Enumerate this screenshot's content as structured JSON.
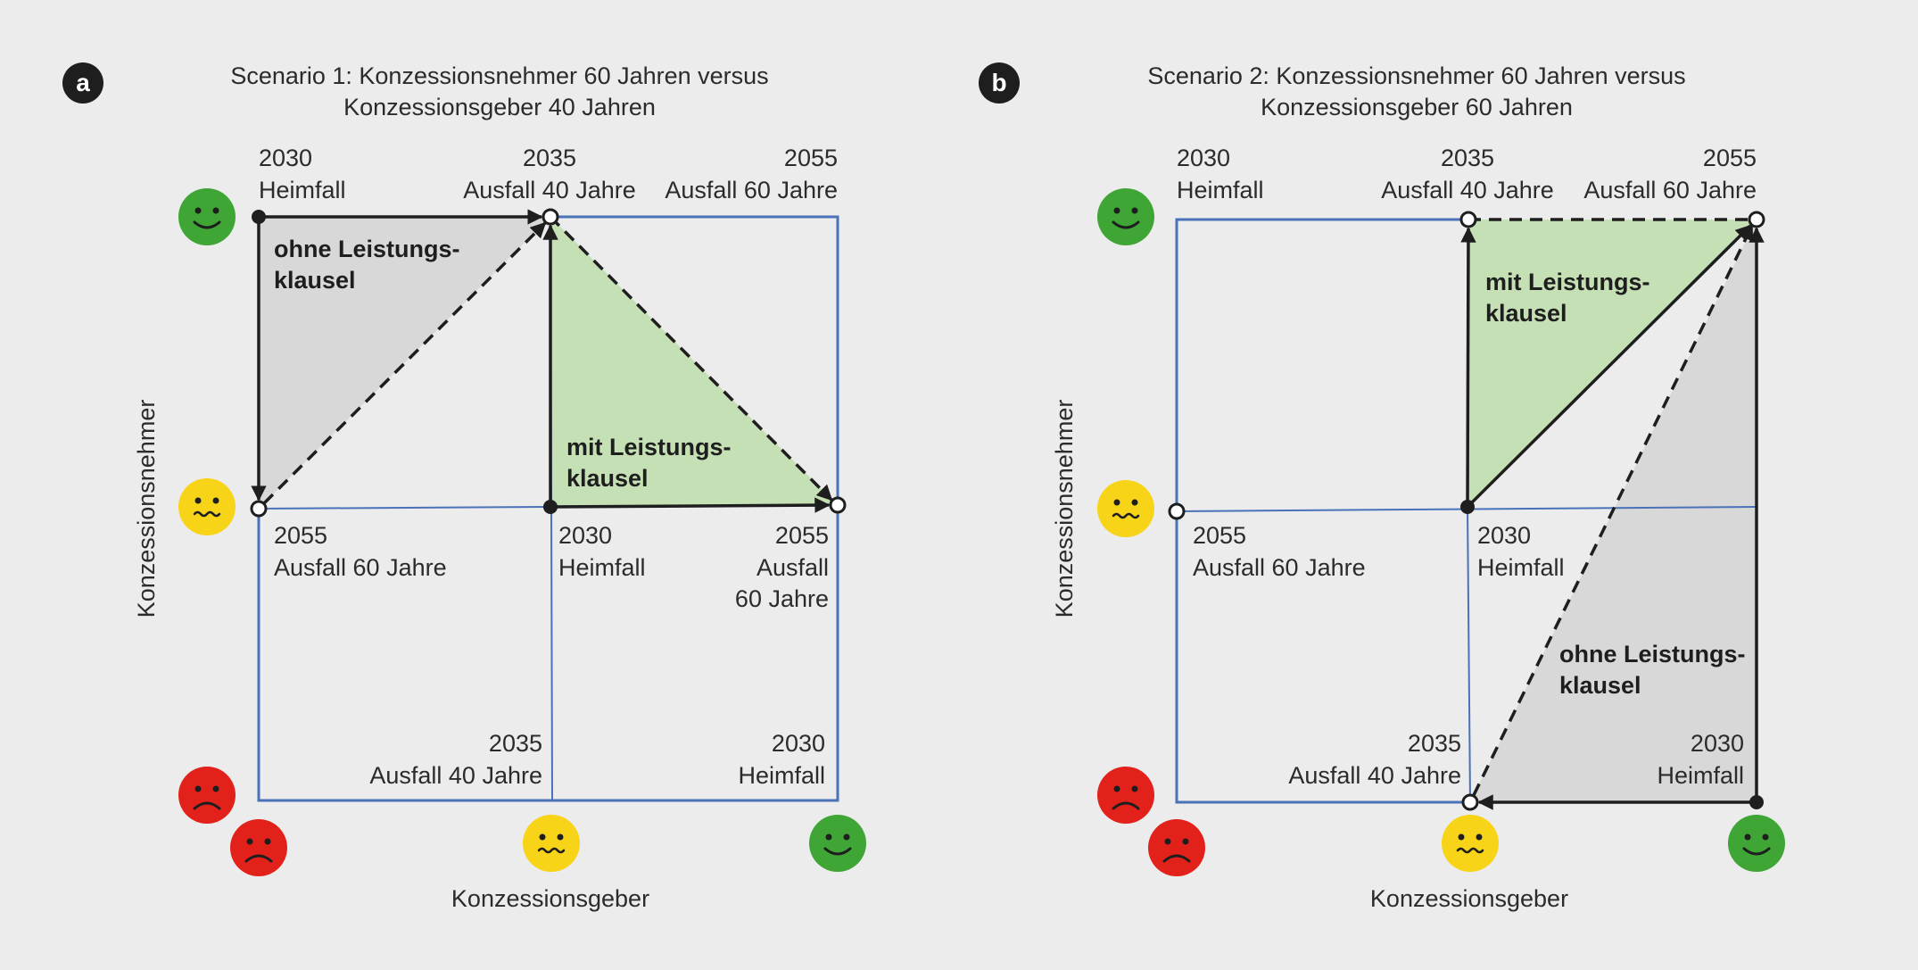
{
  "colors": {
    "background": "#ececec",
    "grid_blue": "#4a72b8",
    "green_fill": "#c5e0b4",
    "grey_fill": "#d8d8d8",
    "smiley_happy": "#3fa535",
    "smiley_neutral": "#f7d417",
    "smiley_sad": "#e3211b"
  },
  "icons": [
    "happy-face-icon",
    "neutral-face-icon",
    "sad-face-icon"
  ],
  "panel_a": {
    "badge": "a",
    "title_line1": "Scenario 1: Konzessionsnehmer 60 Jahren versus",
    "title_line2": "Konzessionsgeber 40 Jahren",
    "y_axis_label": "Konzessionsnehmer",
    "x_axis_label": "Konzessionsgeber",
    "top_labels": [
      {
        "year": "2030",
        "text": "Heimfall"
      },
      {
        "year": "2035",
        "text": "Ausfall 40 Jahre"
      },
      {
        "year": "2055",
        "text": "Ausfall 60 Jahre"
      }
    ],
    "mid_labels": [
      {
        "year": "2055",
        "text": "Ausfall 60 Jahre"
      },
      {
        "year": "2030",
        "text": "Heimfall"
      },
      {
        "year": "2055",
        "text1": "Ausfall",
        "text2": "60 Jahre"
      }
    ],
    "bottom_labels": [
      {
        "year": "2035",
        "text": "Ausfall 40 Jahre"
      },
      {
        "year": "2030",
        "text": "Heimfall"
      }
    ],
    "grey_region": {
      "line1": "ohne Leistungs-",
      "line2": "klausel"
    },
    "green_region": {
      "line1": "mit Leistungs-",
      "line2": "klausel"
    }
  },
  "panel_b": {
    "badge": "b",
    "title_line1": "Scenario 2: Konzessionsnehmer 60 Jahren versus",
    "title_line2": "Konzessionsgeber 60 Jahren",
    "y_axis_label": "Konzessionsnehmer",
    "x_axis_label": "Konzessionsgeber",
    "top_labels": [
      {
        "year": "2030",
        "text": "Heimfall"
      },
      {
        "year": "2035",
        "text": "Ausfall 40 Jahre"
      },
      {
        "year": "2055",
        "text": "Ausfall 60 Jahre"
      }
    ],
    "mid_labels": [
      {
        "year": "2055",
        "text": "Ausfall 60 Jahre"
      },
      {
        "year": "2030",
        "text": "Heimfall"
      }
    ],
    "bottom_labels": [
      {
        "year": "2035",
        "text": "Ausfall 40 Jahre"
      },
      {
        "year": "2030",
        "text": "Heimfall"
      }
    ],
    "green_region": {
      "line1": "mit Leistungs-",
      "line2": "klausel"
    },
    "grey_region": {
      "line1": "ohne Leistungs-",
      "line2": "klausel"
    }
  }
}
